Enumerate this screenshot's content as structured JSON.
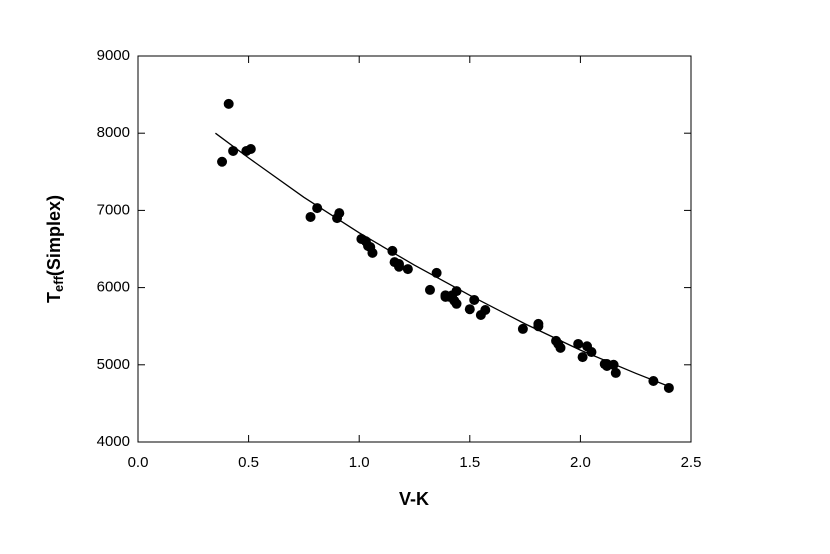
{
  "chart_data": {
    "type": "scatter",
    "x_label": "V-K",
    "y_label": {
      "main": "T",
      "sub": "eff",
      "rest": "(Simplex)"
    },
    "xlim": [
      0,
      2.5
    ],
    "ylim": [
      4000,
      9000
    ],
    "xticks": [
      {
        "value": 0,
        "label": "0.0"
      },
      0.5,
      {
        "value": 1,
        "label": "1.0"
      },
      1.5,
      {
        "value": 2,
        "label": "2.0"
      },
      2.5
    ],
    "yticks": [
      4000,
      5000,
      6000,
      7000,
      8000,
      9000
    ],
    "grid": false,
    "series": [
      {
        "color": "#000000",
        "x": [
          0.38,
          0.41,
          0.43,
          0.49,
          0.51,
          0.78,
          0.81,
          0.9,
          0.91,
          1.01,
          1.03,
          1.04,
          1.05,
          1.06,
          1.15,
          1.16,
          1.18,
          1.18,
          1.22,
          1.32,
          1.35,
          1.39,
          1.39,
          1.41,
          1.42,
          1.43,
          1.44,
          1.44,
          1.5,
          1.52,
          1.55,
          1.57,
          1.74,
          1.81,
          1.81,
          1.89,
          1.9,
          1.91,
          1.99,
          2.01,
          2.03,
          2.05,
          2.11,
          2.12,
          2.12,
          2.15,
          2.16,
          2.33,
          2.4
        ],
        "values": [
          7630,
          8380,
          7770,
          7770,
          7795,
          6915,
          7030,
          6900,
          6965,
          6630,
          6600,
          6540,
          6525,
          6450,
          6475,
          6330,
          6305,
          6270,
          6240,
          5970,
          6190,
          5900,
          5880,
          5880,
          5900,
          5830,
          5790,
          5955,
          5720,
          5840,
          5645,
          5710,
          5465,
          5500,
          5530,
          5310,
          5270,
          5220,
          5270,
          5100,
          5240,
          5165,
          5010,
          5010,
          4985,
          5000,
          4895,
          4790,
          4700
        ]
      }
    ],
    "fit": {
      "color": "#000000",
      "x": [
        0.35,
        0.5,
        0.75,
        1.0,
        1.25,
        1.5,
        1.75,
        2.0,
        2.25,
        2.4
      ],
      "values": [
        8000,
        7680,
        7170,
        6710,
        6290,
        5900,
        5530,
        5190,
        4890,
        4720
      ]
    }
  }
}
